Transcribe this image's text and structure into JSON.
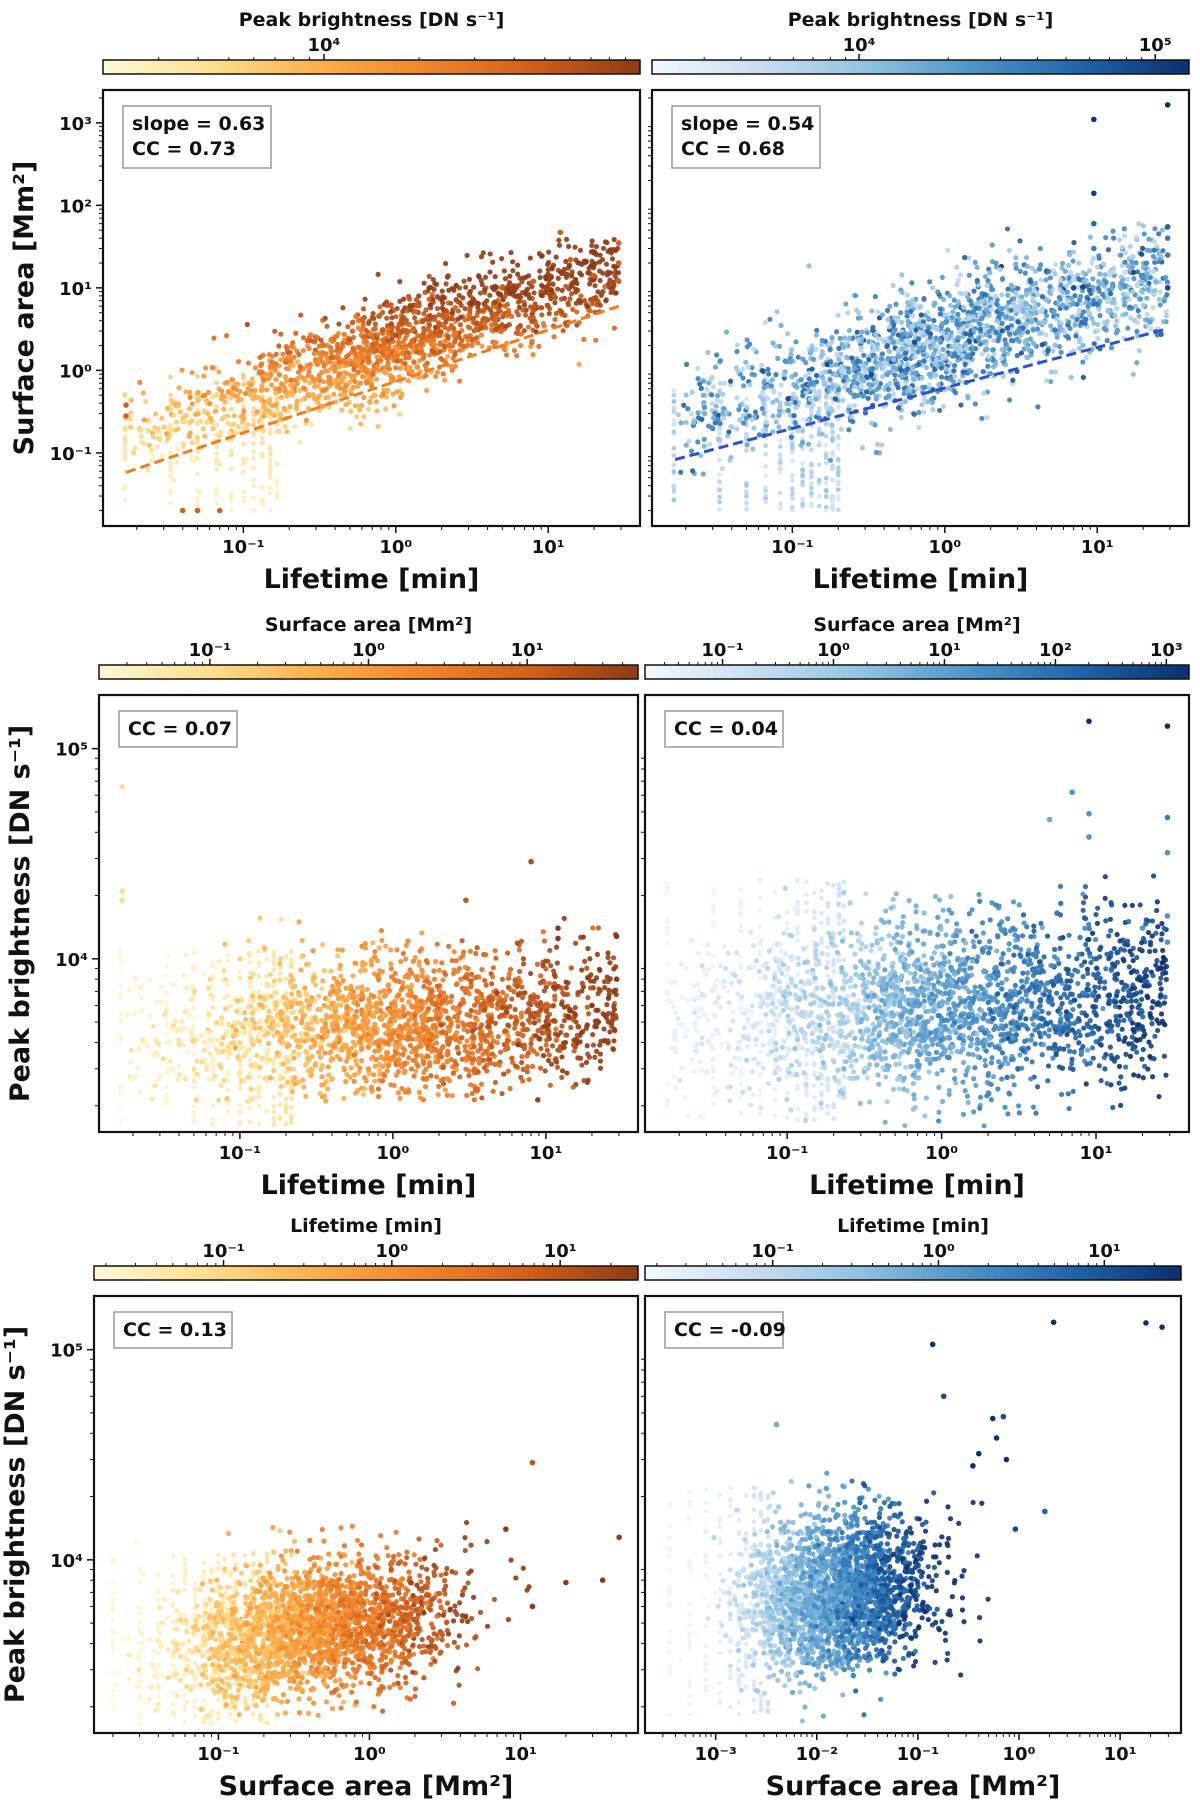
{
  "colors": {
    "orange_stops": [
      "#fff8d8",
      "#fddf8f",
      "#fbb04a",
      "#f2852a",
      "#d35f17",
      "#8e3b14"
    ],
    "blue_stops": [
      "#f3f8fd",
      "#c8ddf0",
      "#91c2e1",
      "#4d94c8",
      "#1f64ab",
      "#0c2f6e"
    ],
    "orange_fit": "#f07d18",
    "blue_fit": "#2a4fd8",
    "frame": "#111111"
  },
  "chart_data": [
    {
      "id": "p1",
      "type": "scatter",
      "xscale": "log",
      "yscale": "log",
      "xlabel": "Lifetime [min]",
      "ylabel": "Surface area [Mm²]",
      "xlim": [
        0.012,
        40
      ],
      "ylim": [
        0.013,
        2500
      ],
      "xticks": [
        {
          "v": 0.1,
          "label": "10⁻¹"
        },
        {
          "v": 1,
          "label": "10⁰"
        },
        {
          "v": 10,
          "label": "10¹"
        }
      ],
      "yticks": [
        {
          "v": 0.1,
          "label": "10⁻¹"
        },
        {
          "v": 1,
          "label": "10⁰"
        },
        {
          "v": 10,
          "label": "10¹"
        },
        {
          "v": 100,
          "label": "10²"
        },
        {
          "v": 1000,
          "label": "10³"
        }
      ],
      "stats": [
        "slope = 0.63",
        "CC = 0.73"
      ],
      "fit": {
        "x": [
          0.017,
          29
        ],
        "y": [
          0.058,
          6.0
        ]
      },
      "colormap": "orange",
      "colorbar": {
        "title": "Peak brightness [DN s⁻¹]",
        "range": [
          2000,
          100000
        ],
        "ticks": [
          {
            "v": 10000,
            "label": "10⁴"
          }
        ]
      },
      "cloud": {
        "n": 1600,
        "seed": 11,
        "xdist": "exp",
        "xmin": 0.017,
        "xmax": 29,
        "xmean": 0.9,
        "yslope": 0.63,
        "yint": 0.3,
        "yscatter": 0.6,
        "ymin": 0.02,
        "ymax": 40,
        "cmode": "y",
        "cmin": 0.04,
        "cmax": 10,
        "cfloor": 0.08
      },
      "bands": {
        "xs": [
          0.0167,
          0.0333,
          0.05,
          0.0667,
          0.0833,
          0.1,
          0.1167,
          0.1333,
          0.15,
          0.1667
        ],
        "ylo": 0.02,
        "yhi": 0.9,
        "yhiGrow": 1.0,
        "n": 20
      },
      "points": [
        {
          "x": 0.017,
          "y": 0.38
        },
        {
          "x": 0.017,
          "y": 0.28
        },
        {
          "x": 0.04,
          "y": 0.02
        },
        {
          "x": 0.05,
          "y": 0.02
        },
        {
          "x": 0.07,
          "y": 0.02
        },
        {
          "x": 12,
          "y": 47
        },
        {
          "x": 8,
          "y": 12
        },
        {
          "x": 14,
          "y": 22
        },
        {
          "x": 29,
          "y": 35
        },
        {
          "x": 29,
          "y": 20
        },
        {
          "x": 29,
          "y": 12
        },
        {
          "x": 20,
          "y": 14
        },
        {
          "x": 5,
          "y": 10
        }
      ]
    },
    {
      "id": "p2",
      "type": "scatter",
      "xscale": "log",
      "yscale": "log",
      "xlabel": "Lifetime [min]",
      "ylabel": "",
      "xlim": [
        0.012,
        40
      ],
      "ylim": [
        0.013,
        2500
      ],
      "xticks": [
        {
          "v": 0.1,
          "label": "10⁻¹"
        },
        {
          "v": 1,
          "label": "10⁰"
        },
        {
          "v": 10,
          "label": "10¹"
        }
      ],
      "yticks": [],
      "stats": [
        "slope = 0.54",
        "CC = 0.68"
      ],
      "fit": {
        "x": [
          0.017,
          29
        ],
        "y": [
          0.083,
          3.2
        ]
      },
      "colormap": "blue",
      "colorbar": {
        "title": "Peak brightness [DN s⁻¹]",
        "range": [
          2000,
          130000
        ],
        "ticks": [
          {
            "v": 10000,
            "label": "10⁴"
          },
          {
            "v": 100000,
            "label": "10⁵"
          }
        ]
      },
      "cloud": {
        "n": 1900,
        "seed": 23,
        "xdist": "exp",
        "xmin": 0.017,
        "xmax": 29,
        "xmean": 0.9,
        "yslope": 0.54,
        "yint": 0.35,
        "yscatter": 0.7,
        "ymin": 0.02,
        "ymax": 60,
        "cmode": "rand",
        "cmin": 0,
        "cmax": 1,
        "cfloor": 0.25
      },
      "bands": {
        "xs": [
          0.0167,
          0.0333,
          0.05,
          0.0667,
          0.0833,
          0.1,
          0.1167,
          0.1333,
          0.15,
          0.1667,
          0.1833,
          0.2
        ],
        "ylo": 0.02,
        "yhi": 0.6,
        "yhiGrow": 1.0,
        "n": 24
      },
      "points": [
        {
          "x": 9.5,
          "y": 1100,
          "c": 1.0
        },
        {
          "x": 29,
          "y": 1650,
          "c": 1.0
        },
        {
          "x": 9.5,
          "y": 140,
          "c": 0.95
        },
        {
          "x": 9.5,
          "y": 60,
          "c": 0.8
        },
        {
          "x": 9.5,
          "y": 30,
          "c": 0.7
        },
        {
          "x": 29,
          "y": 55,
          "c": 0.8
        },
        {
          "x": 29,
          "y": 40,
          "c": 0.7
        },
        {
          "x": 29,
          "y": 25,
          "c": 0.7
        },
        {
          "x": 29,
          "y": 10,
          "c": 0.9
        },
        {
          "x": 7,
          "y": 10,
          "c": 0.9
        },
        {
          "x": 20,
          "y": 14,
          "c": 0.6
        }
      ]
    },
    {
      "id": "p3",
      "type": "scatter",
      "xscale": "log",
      "yscale": "log",
      "xlabel": "Lifetime [min]",
      "ylabel": "Peak brightness [DN s⁻¹]",
      "xlim": [
        0.012,
        40
      ],
      "ylim": [
        1500,
        180000
      ],
      "xticks": [
        {
          "v": 0.1,
          "label": "10⁻¹"
        },
        {
          "v": 1,
          "label": "10⁰"
        },
        {
          "v": 10,
          "label": "10¹"
        }
      ],
      "yticks": [
        {
          "v": 10000,
          "label": "10⁴"
        },
        {
          "v": 100000,
          "label": "10⁵"
        }
      ],
      "stats": [
        "CC = 0.07"
      ],
      "fit": null,
      "colormap": "orange",
      "colorbar": {
        "title": "Surface area [Mm²]",
        "range": [
          0.02,
          50
        ],
        "ticks": [
          {
            "v": 0.1,
            "label": "10⁻¹"
          },
          {
            "v": 1,
            "label": "10⁰"
          },
          {
            "v": 10,
            "label": "10¹"
          }
        ]
      },
      "cloud": {
        "n": 1900,
        "seed": 37,
        "xdist": "exp",
        "xmin": 0.017,
        "xmax": 29,
        "xmean": 1.0,
        "yslope": 0.04,
        "yint": 3.68,
        "yscatter": 0.35,
        "ymin": 2100,
        "ymax": 16000,
        "cmode": "x",
        "cmin": 0.02,
        "cmax": 20,
        "cfloor": 0.05
      },
      "bands": {
        "xs": [
          0.0167,
          0.0333,
          0.05,
          0.0667,
          0.0833,
          0.1,
          0.1167,
          0.1333,
          0.15,
          0.1667,
          0.1833,
          0.2,
          0.2167
        ],
        "ylo": 1600,
        "yhi": 11000,
        "yhiGrow": 1.0,
        "n": 22
      },
      "points": [
        {
          "x": 0.017,
          "y": 66000,
          "c": 0.2
        },
        {
          "x": 0.017,
          "y": 21000,
          "c": 0.2
        },
        {
          "x": 0.017,
          "y": 19000,
          "c": 0.2
        },
        {
          "x": 8,
          "y": 29000,
          "c": 0.9
        },
        {
          "x": 3,
          "y": 19000,
          "c": 0.85
        },
        {
          "x": 29,
          "y": 12800,
          "c": 1.0
        },
        {
          "x": 29,
          "y": 8000,
          "c": 1.0
        },
        {
          "x": 12,
          "y": 14000,
          "c": 1.0
        },
        {
          "x": 12,
          "y": 12500,
          "c": 1.0
        },
        {
          "x": 20,
          "y": 6000,
          "c": 1.0
        },
        {
          "x": 22,
          "y": 5000,
          "c": 1.0
        }
      ]
    },
    {
      "id": "p4",
      "type": "scatter",
      "xscale": "log",
      "yscale": "log",
      "xlabel": "Lifetime [min]",
      "ylabel": "",
      "xlim": [
        0.012,
        40
      ],
      "ylim": [
        1500,
        180000
      ],
      "xticks": [
        {
          "v": 0.1,
          "label": "10⁻¹"
        },
        {
          "v": 1,
          "label": "10⁰"
        },
        {
          "v": 10,
          "label": "10¹"
        }
      ],
      "yticks": [],
      "stats": [
        "CC = 0.04"
      ],
      "fit": null,
      "colormap": "blue",
      "colorbar": {
        "title": "Surface area [Mm²]",
        "range": [
          0.02,
          1600
        ],
        "ticks": [
          {
            "v": 0.1,
            "label": "10⁻¹"
          },
          {
            "v": 1,
            "label": "10⁰"
          },
          {
            "v": 10,
            "label": "10¹"
          },
          {
            "v": 100,
            "label": "10²"
          },
          {
            "v": 1000,
            "label": "10³"
          }
        ]
      },
      "cloud": {
        "n": 2200,
        "seed": 53,
        "xdist": "exp",
        "xmin": 0.017,
        "xmax": 29,
        "xmean": 0.8,
        "yslope": 0.04,
        "yint": 3.78,
        "yscatter": 0.42,
        "ymin": 1600,
        "ymax": 26000,
        "cmode": "x",
        "cmin": 0.02,
        "cmax": 30,
        "cfloor": 0.05
      },
      "bands": {
        "xs": [
          0.0167,
          0.0333,
          0.05,
          0.0667,
          0.0833,
          0.1,
          0.1167,
          0.1333,
          0.15,
          0.1667,
          0.1833,
          0.2,
          0.2167,
          0.2333
        ],
        "ylo": 1700,
        "yhi": 24000,
        "yhiGrow": 1.0,
        "n": 24
      },
      "points": [
        {
          "x": 9,
          "y": 135000,
          "c": 1.0
        },
        {
          "x": 29,
          "y": 128000,
          "c": 1.0
        },
        {
          "x": 7,
          "y": 62000,
          "c": 0.6
        },
        {
          "x": 9,
          "y": 49000,
          "c": 0.6
        },
        {
          "x": 29,
          "y": 47000,
          "c": 0.7
        },
        {
          "x": 9,
          "y": 38000,
          "c": 0.6
        },
        {
          "x": 5,
          "y": 46000,
          "c": 0.5
        },
        {
          "x": 29,
          "y": 32000,
          "c": 0.6
        },
        {
          "x": 29,
          "y": 12000,
          "c": 0.6
        },
        {
          "x": 29,
          "y": 16000,
          "c": 0.6
        },
        {
          "x": 20,
          "y": 14000,
          "c": 0.6
        }
      ]
    },
    {
      "id": "p5",
      "type": "scatter",
      "xscale": "log",
      "yscale": "log",
      "xlabel": "Surface area [Mm²]",
      "ylabel": "Peak brightness [DN s⁻¹]",
      "xlim": [
        0.015,
        60
      ],
      "ylim": [
        1500,
        180000
      ],
      "xticks": [
        {
          "v": 0.1,
          "label": "10⁻¹"
        },
        {
          "v": 1,
          "label": "10⁰"
        },
        {
          "v": 10,
          "label": "10¹"
        }
      ],
      "yticks": [
        {
          "v": 10000,
          "label": "10⁴"
        },
        {
          "v": 100000,
          "label": "10⁵"
        }
      ],
      "stats": [
        "CC = 0.13"
      ],
      "fit": null,
      "colormap": "orange",
      "colorbar": {
        "title": "Lifetime [min]",
        "range": [
          0.017,
          29
        ],
        "ticks": [
          {
            "v": 0.1,
            "label": "10⁻¹"
          },
          {
            "v": 1,
            "label": "10⁰"
          },
          {
            "v": 10,
            "label": "10¹"
          }
        ]
      },
      "cloud": {
        "n": 2200,
        "seed": 71,
        "xdist": "lognorm",
        "xmin": 0.02,
        "xmax": 45,
        "xmean": 0.45,
        "yslope": 0.12,
        "yint": 3.72,
        "yscatter": 0.32,
        "ymin": 1800,
        "ymax": 16000,
        "cmode": "x",
        "cmin": 0.02,
        "cmax": 6,
        "cfloor": 0.0
      },
      "bands": {
        "xs": [
          0.02,
          0.03,
          0.04,
          0.05,
          0.06,
          0.07,
          0.08,
          0.09,
          0.1,
          0.11,
          0.12,
          0.13,
          0.15,
          0.17,
          0.19,
          0.21
        ],
        "ylo": 1650,
        "yhi": 10800,
        "yhiGrow": 1.0,
        "n": 22
      },
      "points": [
        {
          "x": 12,
          "y": 29000,
          "c": 0.85
        },
        {
          "x": 45,
          "y": 12800,
          "c": 1.0
        },
        {
          "x": 35,
          "y": 8000,
          "c": 1.0
        },
        {
          "x": 12,
          "y": 6000,
          "c": 1.0
        },
        {
          "x": 20,
          "y": 7800,
          "c": 1.0
        },
        {
          "x": 8,
          "y": 14000,
          "c": 1.0
        }
      ]
    },
    {
      "id": "p6",
      "type": "scatter",
      "xscale": "log",
      "yscale": "log",
      "xlabel": "Surface area [Mm²]",
      "ylabel": "",
      "xlim": [
        0.0002,
        40
      ],
      "ylim": [
        1500,
        180000
      ],
      "xticks": [
        {
          "v": 0.001,
          "label": "10⁻³"
        },
        {
          "v": 0.01,
          "label": "10⁻²"
        },
        {
          "v": 0.1,
          "label": "10⁻¹"
        },
        {
          "v": 1,
          "label": "10⁰"
        },
        {
          "v": 10,
          "label": "10¹"
        }
      ],
      "yticks": [],
      "stats": [
        "CC = -0.09"
      ],
      "fit": null,
      "colormap": "blue",
      "colorbar": {
        "title": "Lifetime [min]",
        "range": [
          0.017,
          29
        ],
        "ticks": [
          {
            "v": 0.1,
            "label": "10⁻¹"
          },
          {
            "v": 1,
            "label": "10⁰"
          },
          {
            "v": 10,
            "label": "10¹"
          }
        ]
      },
      "cloud": {
        "n": 2400,
        "seed": 97,
        "xdist": "lognorm",
        "xmin": 0.0003,
        "xmax": 1.0,
        "xmean": 0.016,
        "yslope": 0.06,
        "yint": 3.95,
        "yscatter": 0.36,
        "ymin": 1700,
        "ymax": 26000,
        "cmode": "x",
        "cmin": 0.0005,
        "cmax": 0.15,
        "cfloor": 0.0
      },
      "bands": {
        "xs": [
          0.00035,
          0.00055,
          0.0008,
          0.0011,
          0.0014,
          0.0017,
          0.002,
          0.0024,
          0.0028,
          0.0033
        ],
        "ylo": 1800,
        "yhi": 22000,
        "yhiGrow": 1.0,
        "n": 22
      },
      "points": [
        {
          "x": 2.2,
          "y": 135000,
          "c": 1.0
        },
        {
          "x": 18,
          "y": 134000,
          "c": 1.0
        },
        {
          "x": 26,
          "y": 128000,
          "c": 1.0
        },
        {
          "x": 0.14,
          "y": 106000,
          "c": 1.0
        },
        {
          "x": 0.18,
          "y": 60000,
          "c": 0.9
        },
        {
          "x": 0.7,
          "y": 48000,
          "c": 0.9
        },
        {
          "x": 0.55,
          "y": 47000,
          "c": 1.0
        },
        {
          "x": 0.6,
          "y": 38000,
          "c": 1.0
        },
        {
          "x": 0.75,
          "y": 30000,
          "c": 1.0
        },
        {
          "x": 1.8,
          "y": 17000,
          "c": 0.8
        },
        {
          "x": 0.92,
          "y": 14000,
          "c": 0.9
        },
        {
          "x": 0.4,
          "y": 32000,
          "c": 1.0
        },
        {
          "x": 0.004,
          "y": 44000,
          "c": 0.5
        },
        {
          "x": 0.35,
          "y": 28000,
          "c": 1.0
        }
      ]
    }
  ]
}
